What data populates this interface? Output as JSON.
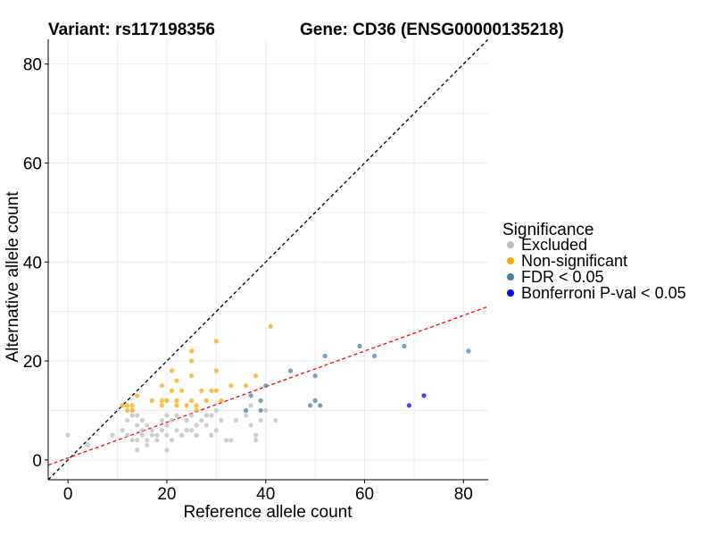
{
  "chart_data": {
    "type": "scatter",
    "title_variant": "Variant: rs117198356",
    "title_gene": "Gene: CD36 (ENSG00000135218)",
    "xlabel": "Reference allele count",
    "ylabel": "Alternative allele count",
    "xlim": [
      -4,
      85
    ],
    "ylim": [
      -4,
      85
    ],
    "xticks": [
      0,
      20,
      40,
      60,
      80
    ],
    "yticks": [
      0,
      20,
      40,
      60,
      80
    ],
    "grid": true,
    "reference_lines": [
      {
        "name": "identity",
        "slope": 1,
        "intercept": 0,
        "color": "#000000",
        "style": "dashed"
      },
      {
        "name": "fit",
        "slope": 0.36,
        "intercept": 0.4,
        "color": "#ff0000",
        "style": "dashed"
      }
    ],
    "legend": {
      "title": "Significance",
      "position": "right",
      "entries": [
        {
          "label": "Excluded",
          "color": "#bebebe"
        },
        {
          "label": "Non-significant",
          "color": "#ffa500"
        },
        {
          "label": "FDR < 0.05",
          "color": "#4682b4"
        },
        {
          "label": "Bonferroni P-val < 0.05",
          "color": "#0000ff"
        }
      ]
    },
    "series": [
      {
        "name": "Excluded",
        "color": "#bebebe",
        "points": [
          [
            0,
            5
          ],
          [
            4,
            3
          ],
          [
            9,
            5
          ],
          [
            11,
            6
          ],
          [
            12,
            8
          ],
          [
            12,
            5
          ],
          [
            13,
            9
          ],
          [
            13,
            4
          ],
          [
            14,
            9
          ],
          [
            14,
            7
          ],
          [
            14,
            4
          ],
          [
            14,
            2
          ],
          [
            15,
            8
          ],
          [
            15,
            6
          ],
          [
            15,
            5
          ],
          [
            16,
            7
          ],
          [
            16,
            4
          ],
          [
            16,
            3
          ],
          [
            17,
            6
          ],
          [
            17,
            5
          ],
          [
            18,
            5
          ],
          [
            18,
            4
          ],
          [
            19,
            8
          ],
          [
            19,
            6
          ],
          [
            20,
            9
          ],
          [
            20,
            7
          ],
          [
            20,
            5
          ],
          [
            20,
            2
          ],
          [
            21,
            8
          ],
          [
            21,
            4
          ],
          [
            22,
            9
          ],
          [
            22,
            6
          ],
          [
            23,
            5
          ],
          [
            24,
            8
          ],
          [
            24,
            6
          ],
          [
            25,
            9
          ],
          [
            25,
            6
          ],
          [
            26,
            7
          ],
          [
            26,
            5
          ],
          [
            27,
            8
          ],
          [
            28,
            9
          ],
          [
            28,
            7
          ],
          [
            29,
            9
          ],
          [
            29,
            5
          ],
          [
            30,
            10
          ],
          [
            30,
            6
          ],
          [
            31,
            8
          ],
          [
            32,
            4
          ],
          [
            33,
            4
          ],
          [
            34,
            8
          ],
          [
            36,
            9
          ],
          [
            37,
            11
          ],
          [
            37,
            7
          ],
          [
            38,
            4
          ],
          [
            38,
            5
          ],
          [
            39,
            8
          ],
          [
            40,
            10
          ],
          [
            42,
            8
          ]
        ]
      },
      {
        "name": "Non-significant",
        "color": "#ffa500",
        "points": [
          [
            11,
            11
          ],
          [
            12,
            11
          ],
          [
            12,
            10
          ],
          [
            13,
            11
          ],
          [
            13,
            10
          ],
          [
            14,
            13
          ],
          [
            17,
            12
          ],
          [
            19,
            15
          ],
          [
            19,
            12
          ],
          [
            19,
            11
          ],
          [
            20,
            12
          ],
          [
            21,
            18
          ],
          [
            21,
            14
          ],
          [
            22,
            16
          ],
          [
            22,
            12
          ],
          [
            22,
            11
          ],
          [
            23,
            14
          ],
          [
            24,
            11
          ],
          [
            25,
            22
          ],
          [
            25,
            20
          ],
          [
            25,
            17
          ],
          [
            25,
            12
          ],
          [
            26,
            10
          ],
          [
            26,
            11
          ],
          [
            27,
            14
          ],
          [
            28,
            12
          ],
          [
            29,
            14
          ],
          [
            30,
            24
          ],
          [
            30,
            18
          ],
          [
            30,
            14
          ],
          [
            31,
            12
          ],
          [
            33,
            15
          ],
          [
            36,
            15
          ],
          [
            38,
            17
          ],
          [
            41,
            27
          ]
        ]
      },
      {
        "name": "FDR < 0.05",
        "color": "#4682b4",
        "points": [
          [
            36,
            10
          ],
          [
            37,
            13
          ],
          [
            39,
            12
          ],
          [
            39,
            10
          ],
          [
            40,
            15
          ],
          [
            45,
            18
          ],
          [
            49,
            11
          ],
          [
            50,
            17
          ],
          [
            50,
            12
          ],
          [
            51,
            11
          ],
          [
            52,
            21
          ],
          [
            59,
            23
          ],
          [
            62,
            21
          ],
          [
            68,
            23
          ],
          [
            81,
            22
          ]
        ]
      },
      {
        "name": "Bonferroni P-val < 0.05",
        "color": "#0000ff",
        "points": [
          [
            69,
            11
          ],
          [
            72,
            13
          ]
        ]
      }
    ]
  }
}
